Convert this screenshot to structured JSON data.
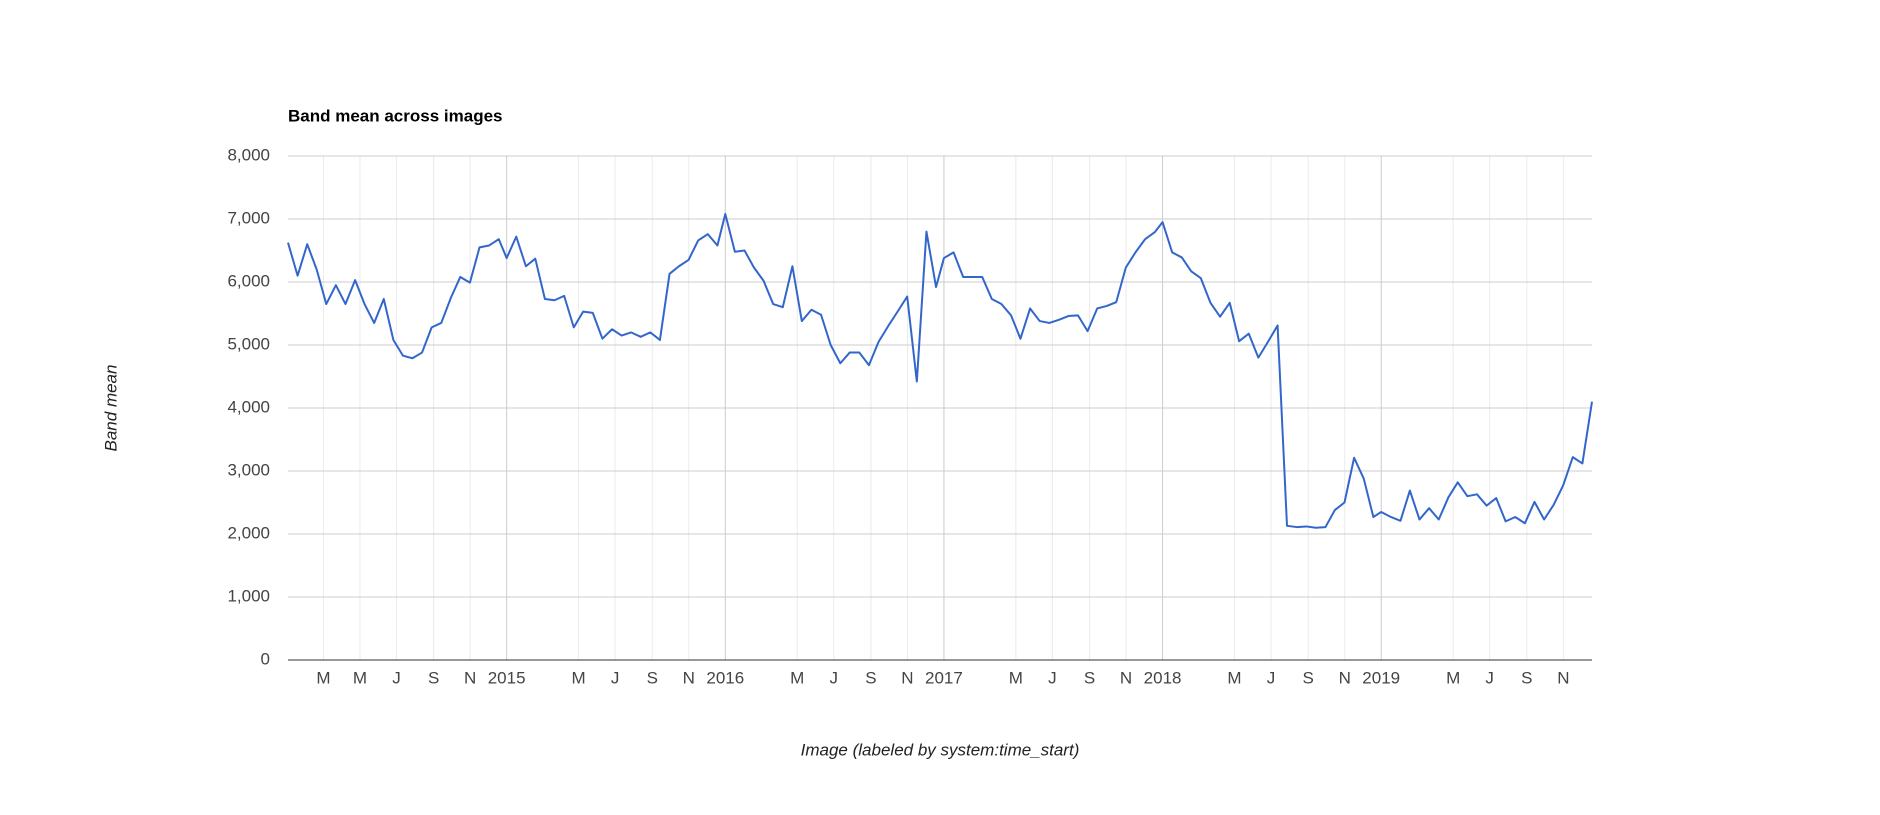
{
  "chart_data": {
    "type": "line",
    "title": "Band mean across images",
    "y_label": "Band mean",
    "x_label": "Image (labeled by system:time_start)",
    "color": "#3366cc",
    "x": [
      2014,
      2014.044,
      2014.088,
      2014.131,
      2014.175,
      2014.219,
      2014.263,
      2014.307,
      2014.35,
      2014.394,
      2014.438,
      2014.482,
      2014.526,
      2014.569,
      2014.613,
      2014.657,
      2014.701,
      2014.745,
      2014.788,
      2014.832,
      2014.876,
      2014.92,
      2014.964,
      2015,
      2015.044,
      2015.088,
      2015.131,
      2015.175,
      2015.219,
      2015.263,
      2015.307,
      2015.35,
      2015.394,
      2015.438,
      2015.482,
      2015.526,
      2015.569,
      2015.613,
      2015.657,
      2015.701,
      2015.745,
      2015.788,
      2015.832,
      2015.876,
      2015.92,
      2015.964,
      2016,
      2016.044,
      2016.088,
      2016.131,
      2016.175,
      2016.219,
      2016.263,
      2016.307,
      2016.35,
      2016.394,
      2016.438,
      2016.482,
      2016.526,
      2016.569,
      2016.613,
      2016.657,
      2016.701,
      2016.745,
      2016.788,
      2016.832,
      2016.876,
      2016.92,
      2016.964,
      2017,
      2017.044,
      2017.088,
      2017.131,
      2017.175,
      2017.219,
      2017.263,
      2017.307,
      2017.35,
      2017.394,
      2017.438,
      2017.482,
      2017.526,
      2017.569,
      2017.613,
      2017.657,
      2017.701,
      2017.745,
      2017.788,
      2017.832,
      2017.876,
      2017.92,
      2017.964,
      2018,
      2018.044,
      2018.088,
      2018.131,
      2018.175,
      2018.219,
      2018.263,
      2018.307,
      2018.35,
      2018.394,
      2018.438,
      2018.482,
      2018.526,
      2018.569,
      2018.613,
      2018.657,
      2018.701,
      2018.745,
      2018.788,
      2018.832,
      2018.876,
      2018.92,
      2018.964,
      2019,
      2019.044,
      2019.088,
      2019.131,
      2019.175,
      2019.219,
      2019.263,
      2019.307,
      2019.35,
      2019.394,
      2019.438,
      2019.482,
      2019.526,
      2019.569,
      2019.613,
      2019.657,
      2019.701,
      2019.745,
      2019.788,
      2019.832,
      2019.876,
      2019.92,
      2019.964
    ],
    "values": [
      6625,
      6100,
      6600,
      6200,
      5650,
      5950,
      5650,
      6030,
      5650,
      5350,
      5730,
      5080,
      4830,
      4790,
      4880,
      5280,
      5350,
      5750,
      6080,
      5990,
      6550,
      6580,
      6680,
      6380,
      6720,
      6250,
      6370,
      5730,
      5710,
      5780,
      5280,
      5530,
      5510,
      5100,
      5250,
      5150,
      5200,
      5130,
      5200,
      5080,
      6130,
      6250,
      6350,
      6660,
      6760,
      6580,
      7080,
      6480,
      6500,
      6230,
      6020,
      5650,
      5600,
      6250,
      5380,
      5560,
      5480,
      5000,
      4710,
      4880,
      4880,
      4680,
      5050,
      5300,
      5530,
      5770,
      4420,
      6800,
      5920,
      6380,
      6470,
      6080,
      6080,
      6080,
      5730,
      5650,
      5470,
      5100,
      5580,
      5380,
      5350,
      5400,
      5460,
      5470,
      5220,
      5580,
      5620,
      5680,
      6230,
      6470,
      6680,
      6790,
      6950,
      6470,
      6390,
      6170,
      6060,
      5670,
      5450,
      5670,
      5060,
      5180,
      4800,
      5050,
      5310,
      2130,
      2110,
      2120,
      2100,
      2110,
      2380,
      2500,
      3210,
      2880,
      2270,
      2350,
      2270,
      2210,
      2690,
      2230,
      2410,
      2230,
      2580,
      2820,
      2600,
      2630,
      2450,
      2570,
      2200,
      2270,
      2170,
      2510,
      2230,
      2460,
      2770,
      3220,
      3120,
      4100
    ],
    "xlim": [
      2014,
      2019.964
    ],
    "xticks": [
      {
        "value": 2014.162,
        "label": "M"
      },
      {
        "value": 2014.329,
        "label": "M"
      },
      {
        "value": 2014.496,
        "label": "J"
      },
      {
        "value": 2014.666,
        "label": "S"
      },
      {
        "value": 2014.833,
        "label": "N"
      },
      2015,
      {
        "value": 2015.329,
        "label": "M"
      },
      {
        "value": 2015.496,
        "label": "J"
      },
      {
        "value": 2015.666,
        "label": "S"
      },
      {
        "value": 2015.833,
        "label": "N"
      },
      2016,
      {
        "value": 2016.329,
        "label": "M"
      },
      {
        "value": 2016.496,
        "label": "J"
      },
      {
        "value": 2016.666,
        "label": "S"
      },
      {
        "value": 2016.833,
        "label": "N"
      },
      2017,
      {
        "value": 2017.329,
        "label": "M"
      },
      {
        "value": 2017.496,
        "label": "J"
      },
      {
        "value": 2017.666,
        "label": "S"
      },
      {
        "value": 2017.833,
        "label": "N"
      },
      2018,
      {
        "value": 2018.329,
        "label": "M"
      },
      {
        "value": 2018.496,
        "label": "J"
      },
      {
        "value": 2018.666,
        "label": "S"
      },
      {
        "value": 2018.833,
        "label": "N"
      },
      2019,
      {
        "value": 2019.329,
        "label": "M"
      },
      {
        "value": 2019.496,
        "label": "J"
      },
      {
        "value": 2019.666,
        "label": "S"
      },
      {
        "value": 2019.833,
        "label": "N"
      }
    ],
    "ylim": [
      0,
      8000
    ],
    "yticks": [
      0,
      {
        "value": 1000,
        "label": "1,000"
      },
      {
        "value": 2000,
        "label": "2,000"
      },
      {
        "value": 3000,
        "label": "3,000"
      },
      {
        "value": 4000,
        "label": "4,000"
      },
      {
        "value": 5000,
        "label": "5,000"
      },
      {
        "value": 6000,
        "label": "6,000"
      },
      {
        "value": 7000,
        "label": "7,000"
      },
      {
        "value": 8000,
        "label": "8,000"
      }
    ],
    "grid": true
  }
}
